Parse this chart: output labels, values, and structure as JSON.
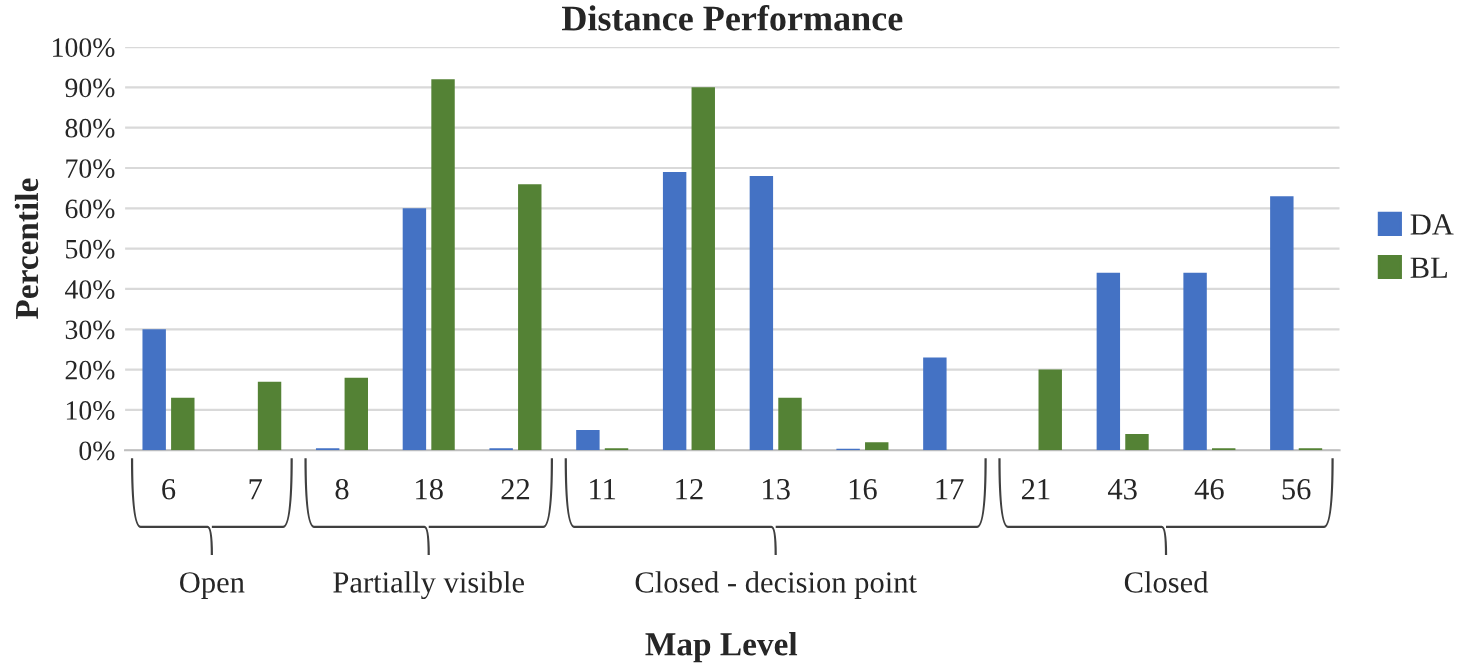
{
  "chart_data": {
    "type": "bar",
    "title": "Distance Performance",
    "xlabel": "Map Level",
    "ylabel": "Percentile",
    "categories": [
      "6",
      "7",
      "8",
      "18",
      "22",
      "11",
      "12",
      "13",
      "16",
      "17",
      "21",
      "43",
      "46",
      "56"
    ],
    "series": [
      {
        "name": "DA",
        "color": "#4472c4",
        "values": [
          30,
          null,
          0.5,
          60,
          0.5,
          5,
          69,
          68,
          0.4,
          23,
          null,
          44,
          44,
          63
        ]
      },
      {
        "name": "BL",
        "color": "#548235",
        "values": [
          13,
          17,
          18,
          92,
          66,
          0.5,
          90,
          13,
          2,
          null,
          20,
          4,
          0.5,
          0.5
        ]
      }
    ],
    "annotations": [
      "Open",
      "Partially visible",
      "Closed - decision point",
      "Closed"
    ],
    "ylim": [
      0,
      100
    ],
    "yticks": [
      {
        "value": 0,
        "label": "0%"
      },
      {
        "value": 10,
        "label": "10%"
      },
      {
        "value": 20,
        "label": "20%"
      },
      {
        "value": 30,
        "label": "30%"
      },
      {
        "value": 40,
        "label": "40%"
      },
      {
        "value": 50,
        "label": "50%"
      },
      {
        "value": 60,
        "label": "60%"
      },
      {
        "value": 70,
        "label": "70%"
      },
      {
        "value": 80,
        "label": "80%"
      },
      {
        "value": 90,
        "label": "90%"
      },
      {
        "value": 100,
        "label": "100%"
      }
    ],
    "grid": "y",
    "legend": "right"
  }
}
